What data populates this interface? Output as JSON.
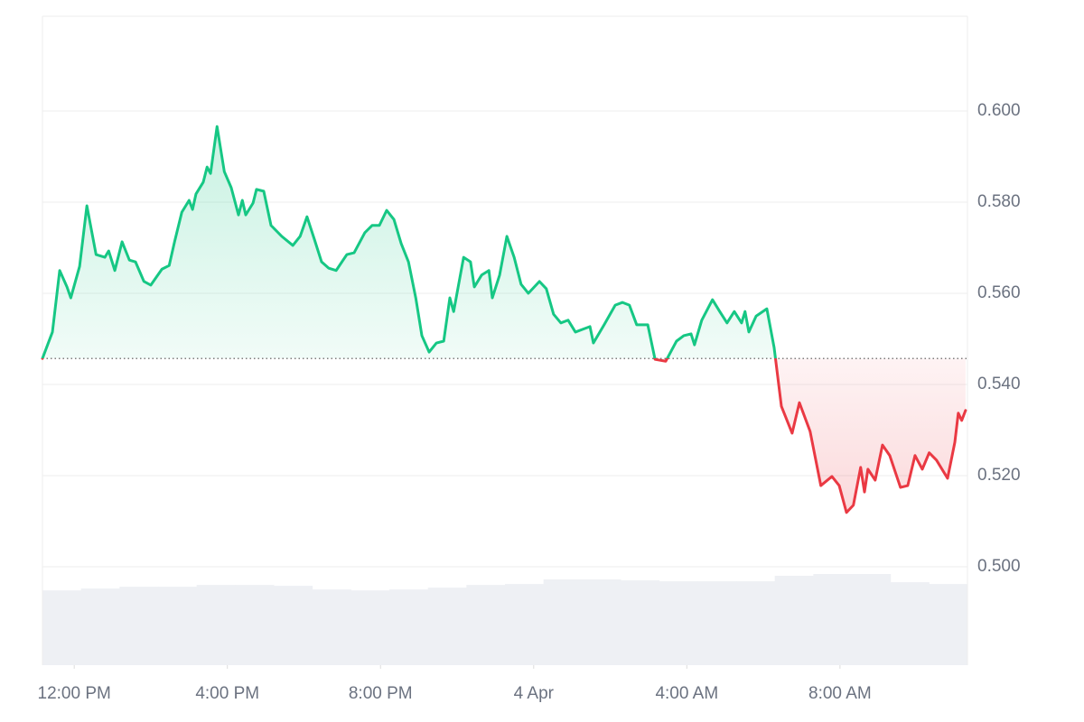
{
  "chart_data": {
    "type": "line",
    "x": [
      -0.83,
      -0.57,
      -0.38,
      -0.19,
      -0.09,
      0.14,
      0.33,
      0.57,
      0.8,
      0.9,
      1.06,
      1.25,
      1.44,
      1.6,
      1.82,
      2.0,
      2.29,
      2.48,
      2.62,
      2.81,
      3.0,
      3.09,
      3.18,
      3.37,
      3.47,
      3.56,
      3.73,
      3.92,
      4.1,
      4.29,
      4.39,
      4.48,
      4.67,
      4.76,
      4.95,
      5.14,
      5.42,
      5.71,
      5.9,
      6.08,
      6.27,
      6.46,
      6.65,
      6.84,
      7.12,
      7.31,
      7.59,
      7.78,
      7.97,
      8.16,
      8.35,
      8.54,
      8.73,
      8.92,
      9.08,
      9.27,
      9.46,
      9.65,
      9.81,
      9.91,
      10.17,
      10.35,
      10.45,
      10.64,
      10.83,
      10.92,
      11.11,
      11.3,
      11.49,
      11.67,
      11.86,
      12.15,
      12.33,
      12.52,
      12.71,
      12.9,
      13.09,
      13.28,
      13.47,
      13.56,
      13.84,
      14.13,
      14.32,
      14.5,
      14.69,
      14.98,
      15.17,
      15.45,
      15.73,
      15.92,
      16.11,
      16.2,
      16.39,
      16.67,
      16.86,
      17.05,
      17.24,
      17.43,
      17.52,
      17.62,
      17.81,
      18.09,
      18.28,
      18.47,
      18.75,
      18.94,
      19.22,
      19.5,
      19.79,
      19.98,
      20.17,
      20.35,
      20.54,
      20.64,
      20.73,
      20.92,
      21.11,
      21.3,
      21.58,
      21.77,
      21.96,
      22.15,
      22.33,
      22.52,
      22.81,
      23.0,
      23.09,
      23.18,
      23.28
    ],
    "series": [
      {
        "color": "#16c784",
        "down_color": "#ea3943",
        "values": [
          0.5457,
          0.5515,
          0.565,
          0.5614,
          0.559,
          0.5659,
          0.5792,
          0.5685,
          0.5679,
          0.5693,
          0.565,
          0.5713,
          0.5673,
          0.5669,
          0.5626,
          0.5618,
          0.5653,
          0.5661,
          0.5713,
          0.5778,
          0.5804,
          0.5784,
          0.5818,
          0.5844,
          0.5877,
          0.5863,
          0.5966,
          0.5867,
          0.5832,
          0.5772,
          0.5804,
          0.5772,
          0.5798,
          0.5828,
          0.5824,
          0.5749,
          0.5725,
          0.5705,
          0.5725,
          0.5768,
          0.5719,
          0.5669,
          0.5655,
          0.565,
          0.5685,
          0.5689,
          0.5733,
          0.5749,
          0.5749,
          0.5782,
          0.5762,
          0.5709,
          0.5669,
          0.559,
          0.5507,
          0.5471,
          0.5491,
          0.5495,
          0.559,
          0.556,
          0.5679,
          0.5669,
          0.5614,
          0.564,
          0.565,
          0.559,
          0.564,
          0.5725,
          0.5679,
          0.562,
          0.56,
          0.5626,
          0.561,
          0.5554,
          0.5535,
          0.5541,
          0.5515,
          0.5521,
          0.5527,
          0.5491,
          0.5531,
          0.5574,
          0.558,
          0.5574,
          0.5531,
          0.5531,
          0.5455,
          0.5451,
          0.5495,
          0.5507,
          0.5511,
          0.5487,
          0.5541,
          0.5586,
          0.556,
          0.5535,
          0.556,
          0.5535,
          0.556,
          0.5515,
          0.555,
          0.5566,
          0.5481,
          0.5352,
          0.5293,
          0.536,
          0.5297,
          0.5178,
          0.5198,
          0.5178,
          0.5119,
          0.5135,
          0.5218,
          0.5164,
          0.5214,
          0.519,
          0.5267,
          0.5244,
          0.5174,
          0.5178,
          0.5244,
          0.5214,
          0.525,
          0.5234,
          0.5194,
          0.5273,
          0.5337,
          0.5321,
          0.5343
        ]
      }
    ],
    "baseline": 0.5457,
    "xlim": [
      -0.83,
      23.33
    ],
    "xticks": [
      {
        "value": 0,
        "label": "12:00 PM"
      },
      {
        "value": 4,
        "label": "4:00 PM"
      },
      {
        "value": 8,
        "label": "8:00 PM"
      },
      {
        "value": 12,
        "label": "4 Apr"
      },
      {
        "value": 16,
        "label": "4:00 AM"
      },
      {
        "value": 20,
        "label": "8:00 AM"
      }
    ],
    "ylim": [
      0.4784,
      0.6208
    ],
    "yticks": [
      {
        "value": 0.5,
        "label": "0.500"
      },
      {
        "value": 0.52,
        "label": "0.520"
      },
      {
        "value": 0.54,
        "label": "0.540"
      },
      {
        "value": 0.56,
        "label": "0.560"
      },
      {
        "value": 0.58,
        "label": "0.580"
      },
      {
        "value": 0.6,
        "label": "0.600"
      }
    ],
    "grid": true,
    "volume": {
      "color": "#eef0f4",
      "lim": [
        0,
        100
      ],
      "values": [
        82,
        84,
        86,
        86,
        88,
        88,
        87,
        83,
        82,
        83,
        85,
        88,
        89,
        94,
        94,
        93,
        92,
        92,
        92,
        98,
        100,
        100,
        91,
        89
      ]
    }
  }
}
